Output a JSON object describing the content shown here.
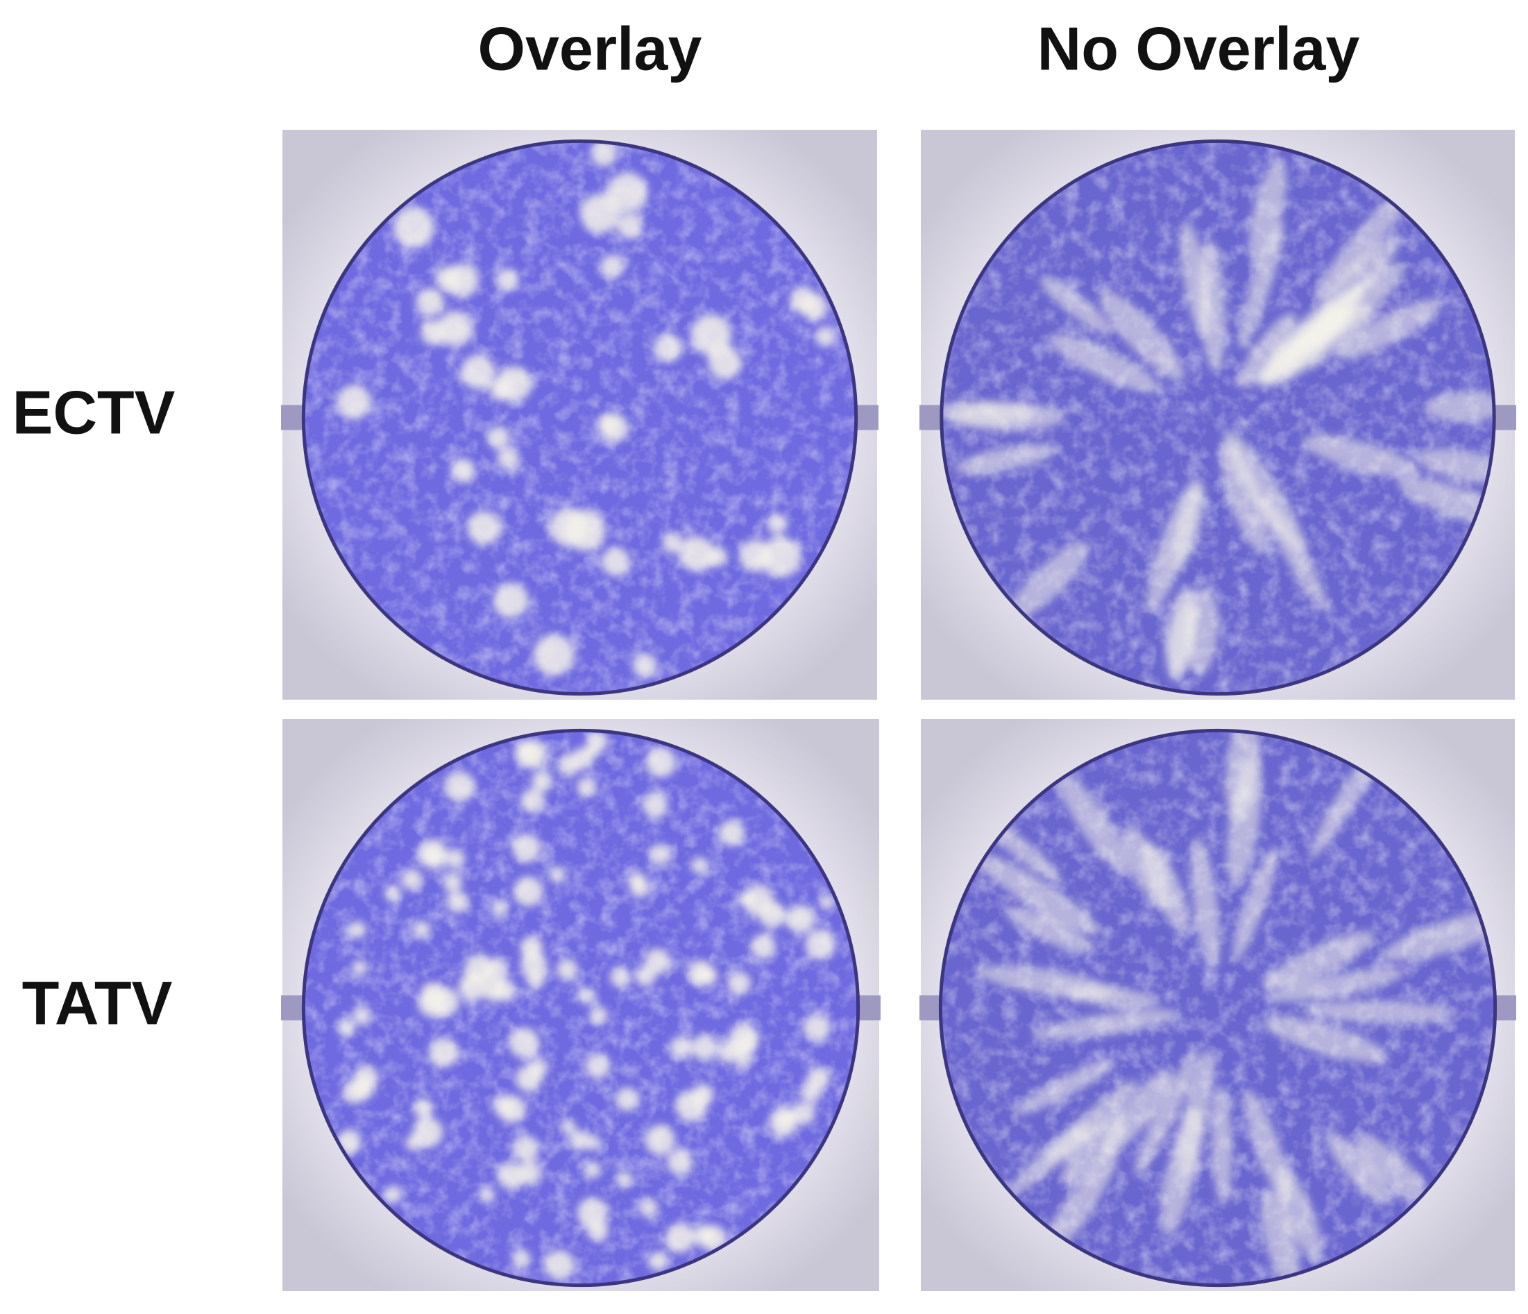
{
  "column_headers": [
    "Overlay",
    "No Overlay"
  ],
  "row_labels": [
    "ECTV",
    "TATV"
  ]
}
